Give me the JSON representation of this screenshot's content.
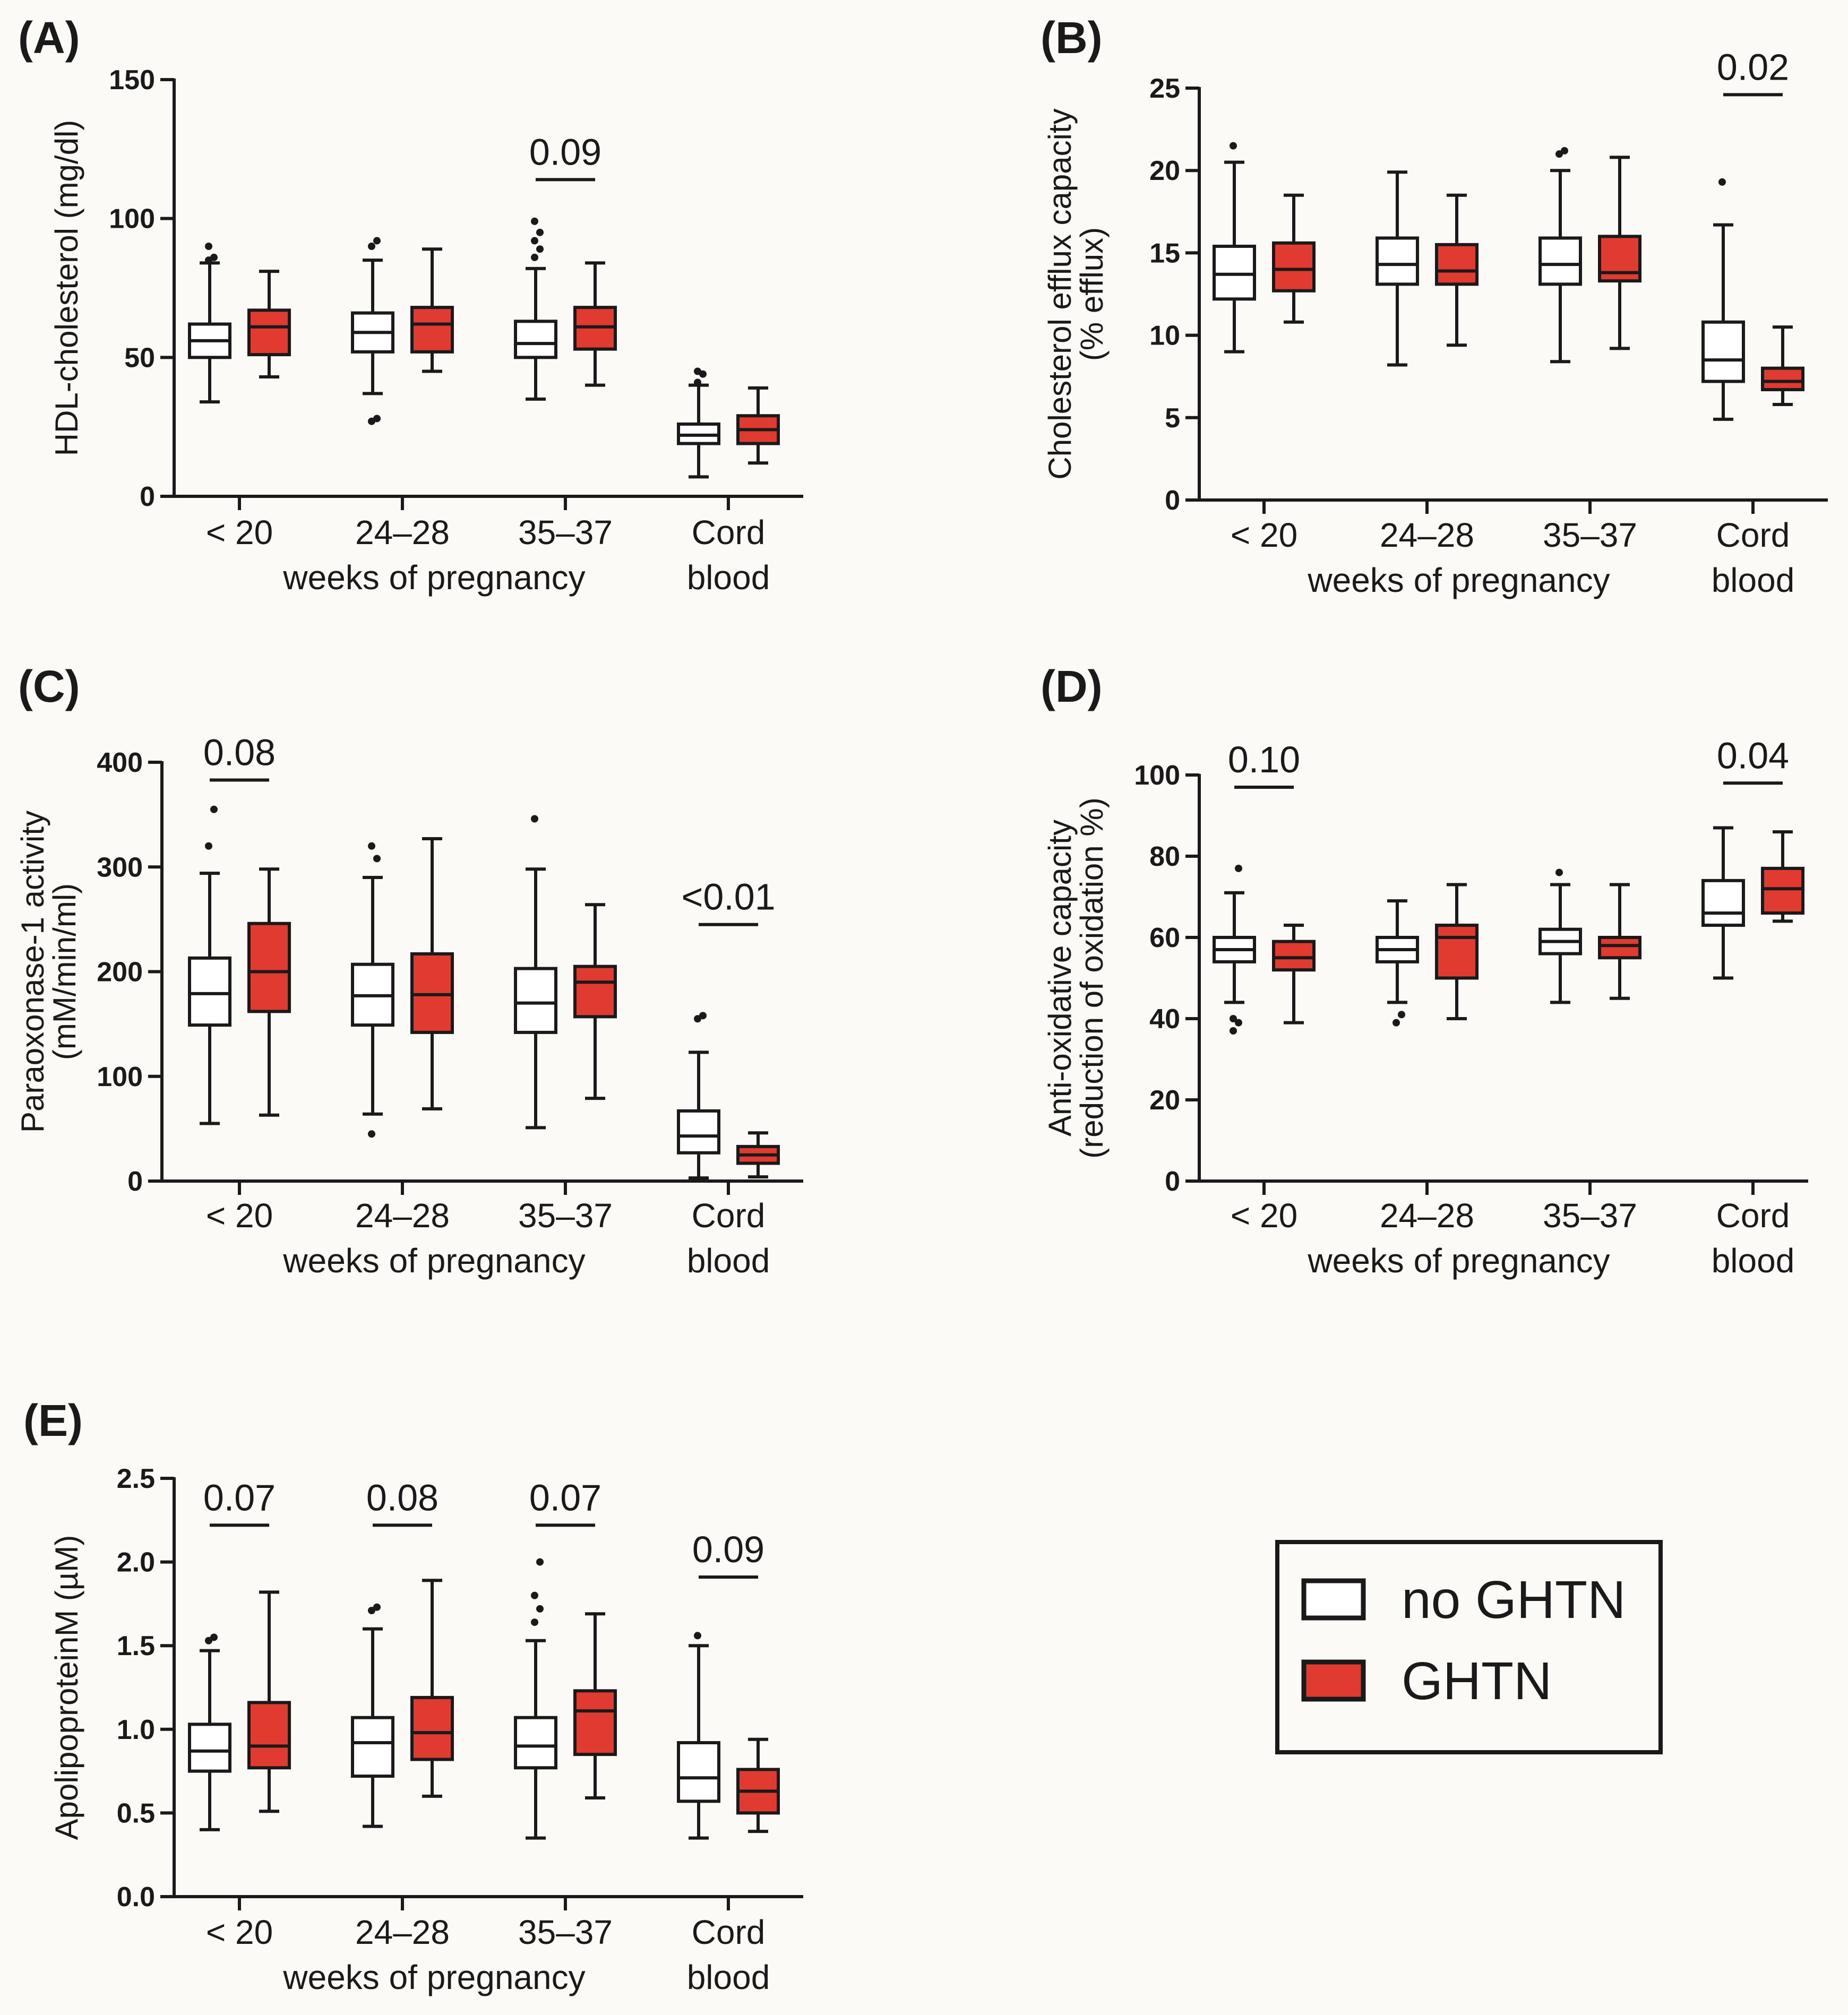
{
  "figure": {
    "legend": {
      "items": [
        {
          "label": "no GHTN",
          "color": "#ffffff"
        },
        {
          "label": "GHTN",
          "color": "#e03a31"
        }
      ]
    },
    "colors": {
      "no_ghtn": "#ffffff",
      "ghtn": "#e03a31",
      "stroke": "#1a1a1a"
    }
  },
  "chart_data": [
    {
      "panel": "(A)",
      "type": "box",
      "ylabel": [
        "HDL-cholesterol (mg/dl)"
      ],
      "ylim": [
        0,
        150
      ],
      "yticks": [
        "0",
        "50",
        "100",
        "150"
      ],
      "categories": [
        "< 20",
        "24–28",
        "35–37",
        [
          "Cord",
          "blood"
        ]
      ],
      "xlabel": "weeks of pregnancy",
      "series": [
        {
          "name": "no GHTN",
          "boxes": [
            {
              "min": 34,
              "q1": 50,
              "median": 56,
              "q3": 62,
              "max": 84,
              "outliers": [
                85,
                86,
                90
              ]
            },
            {
              "min": 37,
              "q1": 52,
              "median": 59,
              "q3": 66,
              "max": 85,
              "outliers": [
                27,
                28,
                90,
                92
              ]
            },
            {
              "min": 35,
              "q1": 50,
              "median": 55,
              "q3": 63,
              "max": 82,
              "outliers": [
                86,
                89,
                92,
                95,
                99
              ]
            },
            {
              "min": 7,
              "q1": 19,
              "median": 22,
              "q3": 26,
              "max": 40,
              "outliers": [
                41,
                44,
                45
              ]
            }
          ]
        },
        {
          "name": "GHTN",
          "boxes": [
            {
              "min": 43,
              "q1": 51,
              "median": 61,
              "q3": 67,
              "max": 81,
              "outliers": []
            },
            {
              "min": 45,
              "q1": 52,
              "median": 62,
              "q3": 68,
              "max": 89,
              "outliers": []
            },
            {
              "min": 40,
              "q1": 53,
              "median": 61,
              "q3": 68,
              "max": 84,
              "outliers": []
            },
            {
              "min": 12,
              "q1": 19,
              "median": 24,
              "q3": 29,
              "max": 39,
              "outliers": []
            }
          ]
        }
      ],
      "pvalues": [
        {
          "group": 2,
          "label": "0.09",
          "level": 114
        }
      ]
    },
    {
      "panel": "(B)",
      "type": "box",
      "ylabel": [
        "Cholesterol efflux capacity",
        "(% efflux)"
      ],
      "ylim": [
        0,
        25
      ],
      "yticks": [
        "0",
        "5",
        "10",
        "15",
        "20",
        "25"
      ],
      "categories": [
        "< 20",
        "24–28",
        "35–37",
        [
          "Cord",
          "blood"
        ]
      ],
      "xlabel": "weeks of pregnancy",
      "series": [
        {
          "name": "no GHTN",
          "boxes": [
            {
              "min": 9,
              "q1": 12.2,
              "median": 13.7,
              "q3": 15.4,
              "max": 20.5,
              "outliers": [
                21.5
              ]
            },
            {
              "min": 8.2,
              "q1": 13.1,
              "median": 14.3,
              "q3": 15.9,
              "max": 19.9,
              "outliers": []
            },
            {
              "min": 8.4,
              "q1": 13.1,
              "median": 14.3,
              "q3": 15.9,
              "max": 20.0,
              "outliers": [
                21.0,
                21.2
              ]
            },
            {
              "min": 4.9,
              "q1": 7.2,
              "median": 8.5,
              "q3": 10.8,
              "max": 16.7,
              "outliers": [
                19.3
              ]
            }
          ]
        },
        {
          "name": "GHTN",
          "boxes": [
            {
              "min": 10.8,
              "q1": 12.7,
              "median": 14.0,
              "q3": 15.6,
              "max": 18.5,
              "outliers": []
            },
            {
              "min": 9.4,
              "q1": 13.1,
              "median": 13.9,
              "q3": 15.5,
              "max": 18.5,
              "outliers": []
            },
            {
              "min": 9.2,
              "q1": 13.3,
              "median": 13.8,
              "q3": 16.0,
              "max": 20.8,
              "outliers": []
            },
            {
              "min": 5.8,
              "q1": 6.7,
              "median": 7.2,
              "q3": 8.0,
              "max": 10.5,
              "outliers": []
            }
          ]
        }
      ],
      "pvalues": [
        {
          "group": 3,
          "label": "0.02",
          "level": 24.6
        }
      ]
    },
    {
      "panel": "(C)",
      "type": "box",
      "ylabel": [
        "Paraoxonase-1 activity",
        "(mM/min/ml)"
      ],
      "ylim": [
        0,
        400
      ],
      "yticks": [
        "0",
        "100",
        "200",
        "300",
        "400"
      ],
      "categories": [
        "< 20",
        "24–28",
        "35–37",
        [
          "Cord",
          "blood"
        ]
      ],
      "xlabel": "weeks of pregnancy",
      "series": [
        {
          "name": "no GHTN",
          "boxes": [
            {
              "min": 55,
              "q1": 149,
              "median": 179,
              "q3": 213,
              "max": 294,
              "outliers": [
                320,
                355
              ]
            },
            {
              "min": 64,
              "q1": 149,
              "median": 177,
              "q3": 207,
              "max": 290,
              "outliers": [
                45,
                308,
                320
              ]
            },
            {
              "min": 51,
              "q1": 142,
              "median": 170,
              "q3": 203,
              "max": 298,
              "outliers": [
                346
              ]
            },
            {
              "min": 3,
              "q1": 27,
              "median": 43,
              "q3": 67,
              "max": 123,
              "outliers": [
                155,
                158
              ]
            }
          ]
        },
        {
          "name": "GHTN",
          "boxes": [
            {
              "min": 63,
              "q1": 162,
              "median": 200,
              "q3": 246,
              "max": 298,
              "outliers": []
            },
            {
              "min": 69,
              "q1": 142,
              "median": 178,
              "q3": 217,
              "max": 327,
              "outliers": []
            },
            {
              "min": 79,
              "q1": 157,
              "median": 190,
              "q3": 205,
              "max": 264,
              "outliers": []
            },
            {
              "min": 4,
              "q1": 17,
              "median": 25,
              "q3": 33,
              "max": 46,
              "outliers": []
            }
          ]
        }
      ],
      "pvalues": [
        {
          "group": 0,
          "label": "0.08",
          "level": 383
        },
        {
          "group": 3,
          "label": "<0.01",
          "level": 245
        }
      ]
    },
    {
      "panel": "(D)",
      "type": "box",
      "ylabel": [
        "Anti-oxidative capacity",
        "(reduction of oxidation %)"
      ],
      "ylim": [
        0,
        100
      ],
      "yticks": [
        "0",
        "20",
        "40",
        "60",
        "80",
        "100"
      ],
      "categories": [
        "< 20",
        "24–28",
        "35–37",
        [
          "Cord",
          "blood"
        ]
      ],
      "xlabel": "weeks of pregnancy",
      "series": [
        {
          "name": "no GHTN",
          "boxes": [
            {
              "min": 44,
              "q1": 54,
              "median": 57,
              "q3": 60,
              "max": 71,
              "outliers": [
                37,
                39,
                40,
                77
              ]
            },
            {
              "min": 44,
              "q1": 54,
              "median": 57,
              "q3": 60,
              "max": 69,
              "outliers": [
                39,
                41
              ]
            },
            {
              "min": 44,
              "q1": 56,
              "median": 59,
              "q3": 62,
              "max": 73,
              "outliers": [
                76
              ]
            },
            {
              "min": 50,
              "q1": 63,
              "median": 66,
              "q3": 74,
              "max": 87,
              "outliers": []
            }
          ]
        },
        {
          "name": "GHTN",
          "boxes": [
            {
              "min": 39,
              "q1": 52,
              "median": 55,
              "q3": 59,
              "max": 63,
              "outliers": []
            },
            {
              "min": 40,
              "q1": 50,
              "median": 60,
              "q3": 63,
              "max": 73,
              "outliers": []
            },
            {
              "min": 45,
              "q1": 55,
              "median": 58,
              "q3": 60,
              "max": 73,
              "outliers": []
            },
            {
              "min": 64,
              "q1": 66,
              "median": 72,
              "q3": 77,
              "max": 86,
              "outliers": []
            }
          ]
        }
      ],
      "pvalues": [
        {
          "group": 0,
          "label": "0.10",
          "level": 97
        },
        {
          "group": 3,
          "label": "0.04",
          "level": 98
        }
      ]
    },
    {
      "panel": "(E)",
      "type": "box",
      "ylabel": [
        "ApolipoproteinM (µM)"
      ],
      "ylim": [
        0,
        2.5
      ],
      "yticks": [
        "0.0",
        "0.5",
        "1.0",
        "1.5",
        "2.0",
        "2.5"
      ],
      "categories": [
        "< 20",
        "24–28",
        "35–37",
        [
          "Cord",
          "blood"
        ]
      ],
      "xlabel": "weeks of pregnancy",
      "series": [
        {
          "name": "no GHTN",
          "boxes": [
            {
              "min": 0.4,
              "q1": 0.75,
              "median": 0.87,
              "q3": 1.03,
              "max": 1.47,
              "outliers": [
                1.53,
                1.55
              ]
            },
            {
              "min": 0.42,
              "q1": 0.72,
              "median": 0.92,
              "q3": 1.07,
              "max": 1.6,
              "outliers": [
                1.71,
                1.73
              ]
            },
            {
              "min": 0.35,
              "q1": 0.77,
              "median": 0.9,
              "q3": 1.07,
              "max": 1.53,
              "outliers": [
                1.64,
                1.72,
                1.8,
                2.0
              ]
            },
            {
              "min": 0.35,
              "q1": 0.57,
              "median": 0.71,
              "q3": 0.92,
              "max": 1.5,
              "outliers": [
                1.56
              ]
            }
          ]
        },
        {
          "name": "GHTN",
          "boxes": [
            {
              "min": 0.51,
              "q1": 0.77,
              "median": 0.9,
              "q3": 1.16,
              "max": 1.82,
              "outliers": []
            },
            {
              "min": 0.6,
              "q1": 0.82,
              "median": 0.98,
              "q3": 1.19,
              "max": 1.89,
              "outliers": []
            },
            {
              "min": 0.59,
              "q1": 0.85,
              "median": 1.11,
              "q3": 1.23,
              "max": 1.69,
              "outliers": []
            },
            {
              "min": 0.39,
              "q1": 0.5,
              "median": 0.63,
              "q3": 0.76,
              "max": 0.94,
              "outliers": []
            }
          ]
        }
      ],
      "pvalues": [
        {
          "group": 0,
          "label": "0.07",
          "level": 2.22
        },
        {
          "group": 1,
          "label": "0.08",
          "level": 2.22
        },
        {
          "group": 2,
          "label": "0.07",
          "level": 2.22
        },
        {
          "group": 3,
          "label": "0.09",
          "level": 1.91
        }
      ]
    }
  ]
}
